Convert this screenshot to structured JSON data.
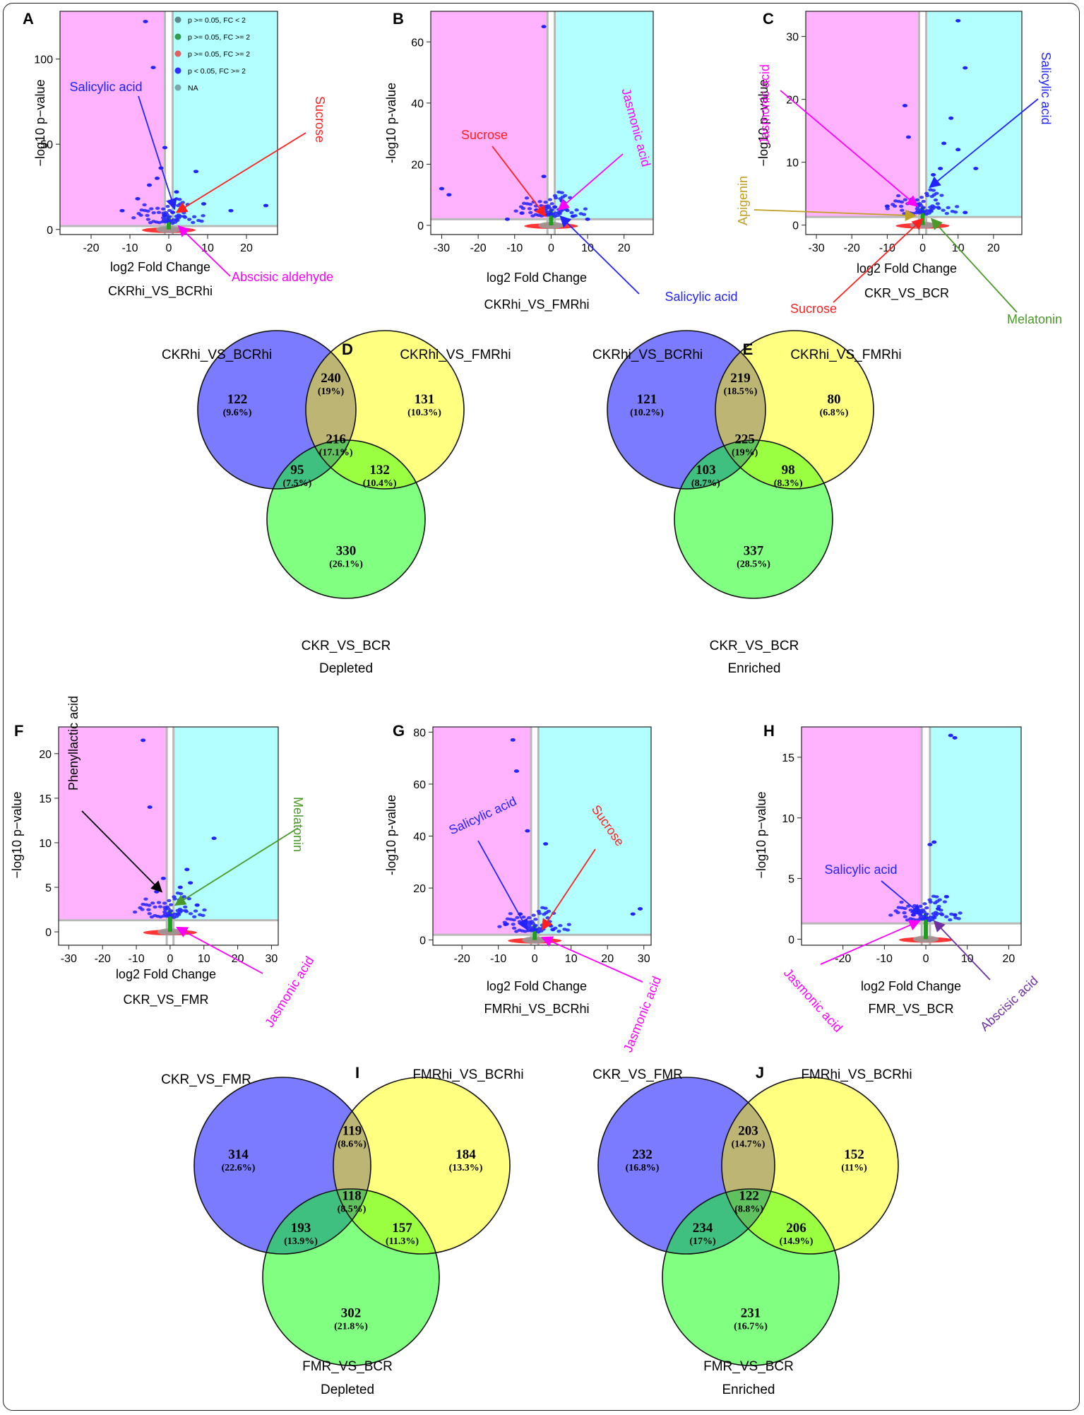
{
  "figure": {
    "background": "#ffffff"
  },
  "colors": {
    "left_region": "#ffb3ff",
    "right_region": "#b3ffff",
    "blue": "#2323ff",
    "red": "#ff2020",
    "green": "#1f9e1f",
    "grey": "#9a9a9a",
    "magenta": "#ff00ff",
    "olive": "#c0a020",
    "leaf": "#4a9a2a",
    "black": "#000000",
    "purple": "#7030a0",
    "venn_a": "#7b7bff",
    "venn_b": "#ffff80",
    "venn_c": "#80ff80"
  },
  "legend": [
    {
      "label": "p >= 0.05, FC < 2",
      "color": "#5c8a8a"
    },
    {
      "label": "p >= 0.05, FC >= 2",
      "color": "#2e9e4e"
    },
    {
      "label": "p >= 0.05, FC >= 2",
      "color": "#e06060"
    },
    {
      "label": "p < 0.05, FC >= 2",
      "color": "#3030ff"
    },
    {
      "label": "NA",
      "color": "#7aa8a8"
    }
  ],
  "chart_data": [
    {
      "panel": "A",
      "type": "scatter",
      "xlabel": "log2 Fold Change",
      "ylabel": "−log10 p−value",
      "comparison": "CKRhi_VS_BCRhi",
      "xlim": [
        -28,
        28
      ],
      "ylim": [
        -3,
        128
      ],
      "xticks": [
        -20,
        -10,
        0,
        10,
        20
      ],
      "yticks": [
        0,
        50,
        100
      ],
      "points": [
        {
          "x": -6,
          "y": 122,
          "c": "blue"
        },
        {
          "x": -4,
          "y": 95,
          "c": "blue"
        },
        {
          "x": -1,
          "y": 48,
          "c": "blue"
        },
        {
          "x": -2,
          "y": 36,
          "c": "blue"
        },
        {
          "x": 7,
          "y": 34,
          "c": "blue"
        },
        {
          "x": -3,
          "y": 30,
          "c": "blue"
        },
        {
          "x": -5,
          "y": 26,
          "c": "blue"
        },
        {
          "x": 2,
          "y": 22,
          "c": "blue"
        },
        {
          "x": -8,
          "y": 18,
          "c": "blue"
        },
        {
          "x": 9,
          "y": 15,
          "c": "blue"
        },
        {
          "x": 25,
          "y": 14,
          "c": "blue"
        },
        {
          "x": -12,
          "y": 11,
          "c": "blue"
        },
        {
          "x": 16,
          "y": 11,
          "c": "blue"
        },
        {
          "x": 1,
          "y": 10,
          "c": "blue"
        },
        {
          "x": -1,
          "y": 8,
          "c": "blue"
        }
      ],
      "annotations": [
        {
          "text": "Salicylic acid",
          "x": 1.5,
          "y": 12,
          "color": "blue"
        },
        {
          "text": "Sucrose",
          "x": 2,
          "y": 10,
          "color": "red"
        },
        {
          "text": "Abscisic aldehyde",
          "x": 2.5,
          "y": 2,
          "color": "magenta"
        }
      ]
    },
    {
      "panel": "B",
      "type": "scatter",
      "xlabel": "log2 Fold Change",
      "ylabel": "-log10 p-value",
      "comparison": "CKRhi_VS_FMRhi",
      "xlim": [
        -33,
        28
      ],
      "ylim": [
        -3,
        70
      ],
      "xticks": [
        -30,
        -20,
        -10,
        0,
        10,
        20
      ],
      "yticks": [
        0,
        20,
        40,
        60
      ],
      "points": [
        {
          "x": -2,
          "y": 65,
          "c": "blue"
        },
        {
          "x": -30,
          "y": 12,
          "c": "blue"
        },
        {
          "x": -28,
          "y": 10,
          "c": "blue"
        },
        {
          "x": -2,
          "y": 16,
          "c": "blue"
        },
        {
          "x": 3,
          "y": 8,
          "c": "blue"
        },
        {
          "x": -8,
          "y": 4,
          "c": "blue"
        },
        {
          "x": 6,
          "y": 3,
          "c": "blue"
        },
        {
          "x": -4,
          "y": 5,
          "c": "blue"
        },
        {
          "x": 1,
          "y": 6,
          "c": "blue"
        },
        {
          "x": 10,
          "y": 2,
          "c": "blue"
        },
        {
          "x": -12,
          "y": 2,
          "c": "blue"
        }
      ],
      "annotations": [
        {
          "text": "Sucrose",
          "x": -1.5,
          "y": 3,
          "color": "red"
        },
        {
          "text": "Jasmonic acid",
          "x": 2,
          "y": 5,
          "color": "magenta"
        },
        {
          "text": "Salicylic acid",
          "x": 2.5,
          "y": 3,
          "color": "blue"
        }
      ]
    },
    {
      "panel": "C",
      "type": "scatter",
      "xlabel": "log2 Fold Change",
      "ylabel": "−log10 p−value",
      "comparison": "CKR_VS_BCR",
      "xlim": [
        -33,
        28
      ],
      "ylim": [
        -1.5,
        34
      ],
      "xticks": [
        -30,
        -20,
        -10,
        0,
        10,
        20
      ],
      "yticks": [
        0,
        10,
        20,
        30
      ],
      "points": [
        {
          "x": 10,
          "y": 32.5,
          "c": "blue"
        },
        {
          "x": 12,
          "y": 25,
          "c": "blue"
        },
        {
          "x": -5,
          "y": 19,
          "c": "blue"
        },
        {
          "x": 8,
          "y": 17,
          "c": "blue"
        },
        {
          "x": -4,
          "y": 14,
          "c": "blue"
        },
        {
          "x": 6,
          "y": 13,
          "c": "blue"
        },
        {
          "x": 10,
          "y": 12,
          "c": "blue"
        },
        {
          "x": 15,
          "y": 9,
          "c": "blue"
        },
        {
          "x": 5,
          "y": 9,
          "c": "blue"
        },
        {
          "x": 3,
          "y": 8,
          "c": "blue"
        },
        {
          "x": -10,
          "y": 3,
          "c": "blue"
        },
        {
          "x": 12,
          "y": 2,
          "c": "blue"
        }
      ],
      "annotations": [
        {
          "text": "Jasmonic acid",
          "x": -1.5,
          "y": 3,
          "color": "magenta"
        },
        {
          "text": "Salicylic acid",
          "x": 2,
          "y": 6,
          "color": "blue"
        },
        {
          "text": "Apigenin",
          "x": -2,
          "y": 1.5,
          "color": "olive"
        },
        {
          "text": "Sucrose",
          "x": 0,
          "y": 1,
          "color": "red"
        },
        {
          "text": "Melatonin",
          "x": 2.5,
          "y": 1,
          "color": "leaf"
        }
      ]
    },
    {
      "panel": "F",
      "type": "scatter",
      "xlabel": "log2 Fold Change",
      "ylabel": "−log10 p−value",
      "comparison": "CKR_VS_FMR",
      "xlim": [
        -33,
        32
      ],
      "ylim": [
        -1.5,
        23
      ],
      "xticks": [
        -30,
        -20,
        -10,
        0,
        10,
        20,
        30
      ],
      "yticks": [
        0,
        5,
        10,
        15,
        20
      ],
      "points": [
        {
          "x": -8,
          "y": 21.5,
          "c": "blue"
        },
        {
          "x": -6,
          "y": 14,
          "c": "blue"
        },
        {
          "x": 13,
          "y": 10.5,
          "c": "blue"
        },
        {
          "x": -2,
          "y": 6,
          "c": "blue"
        },
        {
          "x": 5,
          "y": 7,
          "c": "blue"
        },
        {
          "x": 6,
          "y": 5.5,
          "c": "blue"
        },
        {
          "x": -4,
          "y": 4.5,
          "c": "blue"
        },
        {
          "x": 3,
          "y": 5,
          "c": "blue"
        },
        {
          "x": 8,
          "y": 3,
          "c": "blue"
        }
      ],
      "annotations": [
        {
          "text": "Phenyllactic acid",
          "x": -2.5,
          "y": 4.5,
          "color": "black"
        },
        {
          "text": "Melatonin",
          "x": 1.5,
          "y": 3,
          "color": "leaf"
        },
        {
          "text": "Jasmonic acid",
          "x": 2,
          "y": 0.5,
          "color": "magenta"
        }
      ]
    },
    {
      "panel": "G",
      "type": "scatter",
      "xlabel": "log2 Fold Change",
      "ylabel": "-log10 p-value",
      "comparison": "FMRhi_VS_BCRhi",
      "xlim": [
        -28,
        32
      ],
      "ylim": [
        -2,
        82
      ],
      "xticks": [
        -20,
        -10,
        0,
        10,
        20,
        30
      ],
      "yticks": [
        0,
        20,
        40,
        60,
        80
      ],
      "points": [
        {
          "x": -6,
          "y": 77,
          "c": "blue"
        },
        {
          "x": -5,
          "y": 65,
          "c": "blue"
        },
        {
          "x": -2,
          "y": 42,
          "c": "blue"
        },
        {
          "x": 3,
          "y": 37,
          "c": "blue"
        },
        {
          "x": 29,
          "y": 12,
          "c": "blue"
        },
        {
          "x": 27,
          "y": 10,
          "c": "blue"
        },
        {
          "x": -4,
          "y": 10,
          "c": "blue"
        },
        {
          "x": -8,
          "y": 6,
          "c": "blue"
        },
        {
          "x": 5,
          "y": 4,
          "c": "blue"
        }
      ],
      "annotations": [
        {
          "text": "Salicylic acid",
          "x": -2,
          "y": 4,
          "color": "blue"
        },
        {
          "text": "Sucrose",
          "x": 2,
          "y": 4,
          "color": "red"
        },
        {
          "text": "Jasmonic acid",
          "x": 2,
          "y": 1,
          "color": "magenta"
        }
      ]
    },
    {
      "panel": "H",
      "type": "scatter",
      "xlabel": "log2 Fold Change",
      "ylabel": "−log10 p−value",
      "comparison": "FMR_VS_BCR",
      "xlim": [
        -30,
        23
      ],
      "ylim": [
        -0.5,
        17.5
      ],
      "xticks": [
        -20,
        -10,
        0,
        10,
        20
      ],
      "yticks": [
        0,
        5,
        10,
        15
      ],
      "points": [
        {
          "x": 6,
          "y": 16.8,
          "c": "blue"
        },
        {
          "x": 7,
          "y": 16.6,
          "c": "blue"
        },
        {
          "x": 2,
          "y": 8,
          "c": "blue"
        },
        {
          "x": 1,
          "y": 7.8,
          "c": "blue"
        },
        {
          "x": 5,
          "y": 3.5,
          "c": "blue"
        },
        {
          "x": 3,
          "y": 2.5,
          "c": "blue"
        },
        {
          "x": 7,
          "y": 2,
          "c": "blue"
        },
        {
          "x": -3,
          "y": 2,
          "c": "blue"
        }
      ],
      "annotations": [
        {
          "text": "Salicylic acid",
          "x": -1,
          "y": 2,
          "color": "blue"
        },
        {
          "text": "Jasmonic acid",
          "x": -1.5,
          "y": 1.5,
          "color": "magenta"
        },
        {
          "text": "Abscisic acid",
          "x": 2,
          "y": 1.5,
          "color": "purple"
        }
      ]
    },
    {
      "panel": "D",
      "type": "venn",
      "set_a": "CKRhi_VS_BCRhi",
      "set_b": "CKRhi_VS_FMRhi",
      "set_c": "CKR_VS_BCR",
      "caption": "Depleted",
      "regions": {
        "a": [
          "122",
          "(9.6%)"
        ],
        "b": [
          "131",
          "(10.3%)"
        ],
        "c": [
          "330",
          "(26.1%)"
        ],
        "ab": [
          "240",
          "(19%)"
        ],
        "ac": [
          "95",
          "(7.5%)"
        ],
        "bc": [
          "132",
          "(10.4%)"
        ],
        "abc": [
          "216",
          "(17.1%)"
        ]
      }
    },
    {
      "panel": "E",
      "type": "venn",
      "set_a": "CKRhi_VS_BCRhi",
      "set_b": "CKRhi_VS_FMRhi",
      "set_c": "CKR_VS_BCR",
      "caption": "Enriched",
      "regions": {
        "a": [
          "121",
          "(10.2%)"
        ],
        "b": [
          "80",
          "(6.8%)"
        ],
        "c": [
          "337",
          "(28.5%)"
        ],
        "ab": [
          "219",
          "(18.5%)"
        ],
        "ac": [
          "103",
          "(8.7%)"
        ],
        "bc": [
          "98",
          "(8.3%)"
        ],
        "abc": [
          "225",
          "(19%)"
        ]
      }
    },
    {
      "panel": "I",
      "type": "venn",
      "set_a": "CKR_VS_FMR",
      "set_b": "FMRhi_VS_BCRhi",
      "set_c": "FMR_VS_BCR",
      "caption": "Depleted",
      "regions": {
        "a": [
          "314",
          "(22.6%)"
        ],
        "b": [
          "184",
          "(13.3%)"
        ],
        "c": [
          "302",
          "(21.8%)"
        ],
        "ab": [
          "119",
          "(8.6%)"
        ],
        "ac": [
          "193",
          "(13.9%)"
        ],
        "bc": [
          "157",
          "(11.3%)"
        ],
        "abc": [
          "118",
          "(8.5%)"
        ]
      }
    },
    {
      "panel": "J",
      "type": "venn",
      "set_a": "CKR_VS_FMR",
      "set_b": "FMRhi_VS_BCRhi",
      "set_c": "FMR_VS_BCR",
      "caption": "Enriched",
      "regions": {
        "a": [
          "232",
          "(16.8%)"
        ],
        "b": [
          "152",
          "(11%)"
        ],
        "c": [
          "231",
          "(16.7%)"
        ],
        "ab": [
          "203",
          "(14.7%)"
        ],
        "ac": [
          "234",
          "(17%)"
        ],
        "bc": [
          "206",
          "(14.9%)"
        ],
        "abc": [
          "122",
          "(8.8%)"
        ]
      }
    }
  ]
}
